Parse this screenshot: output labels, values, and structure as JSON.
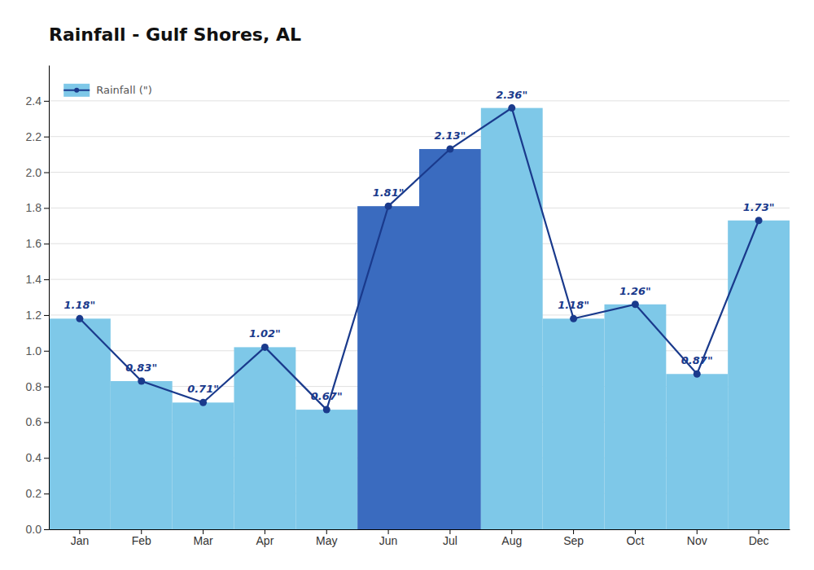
{
  "chart_data": {
    "type": "bar",
    "title": "Rainfall - Gulf Shores, AL",
    "categories": [
      "Jan",
      "Feb",
      "Mar",
      "Apr",
      "May",
      "Jun",
      "Jul",
      "Aug",
      "Sep",
      "Oct",
      "Nov",
      "Dec"
    ],
    "series": [
      {
        "name": "Rainfall (\")",
        "type": "bar",
        "colors": [
          "#7ec8e8",
          "#7ec8e8",
          "#7ec8e8",
          "#7ec8e8",
          "#7ec8e8",
          "#3a6bbf",
          "#3a6bbf",
          "#7ec8e8",
          "#7ec8e8",
          "#7ec8e8",
          "#7ec8e8",
          "#7ec8e8"
        ],
        "values": [
          1.18,
          0.83,
          0.71,
          1.02,
          0.67,
          1.81,
          2.13,
          2.36,
          1.18,
          1.26,
          0.87,
          1.73
        ]
      },
      {
        "type": "line",
        "color": "#1a3a8c",
        "marker": "circle",
        "values": [
          1.18,
          0.83,
          0.71,
          1.02,
          0.67,
          1.81,
          2.13,
          2.36,
          1.18,
          1.26,
          0.87,
          1.73
        ],
        "value_labels": [
          "1.18\"",
          "0.83\"",
          "0.71\"",
          "1.02\"",
          "0.67\"",
          "1.81\"",
          "2.13\"",
          "2.36\"",
          "1.18\"",
          "1.26\"",
          "0.87\"",
          "1.73\""
        ]
      }
    ],
    "ylim": [
      0,
      2.6
    ],
    "yticks": [
      {
        "value": 0.0,
        "label": "0.0"
      },
      0.2,
      0.4,
      0.6,
      0.8,
      {
        "value": 1.0,
        "label": "1.0"
      },
      1.2,
      1.4,
      1.6,
      1.8,
      {
        "value": 2.0,
        "label": "2.0"
      },
      2.2,
      2.4
    ],
    "grid": true,
    "legend": "upper left",
    "data_labels": true
  }
}
